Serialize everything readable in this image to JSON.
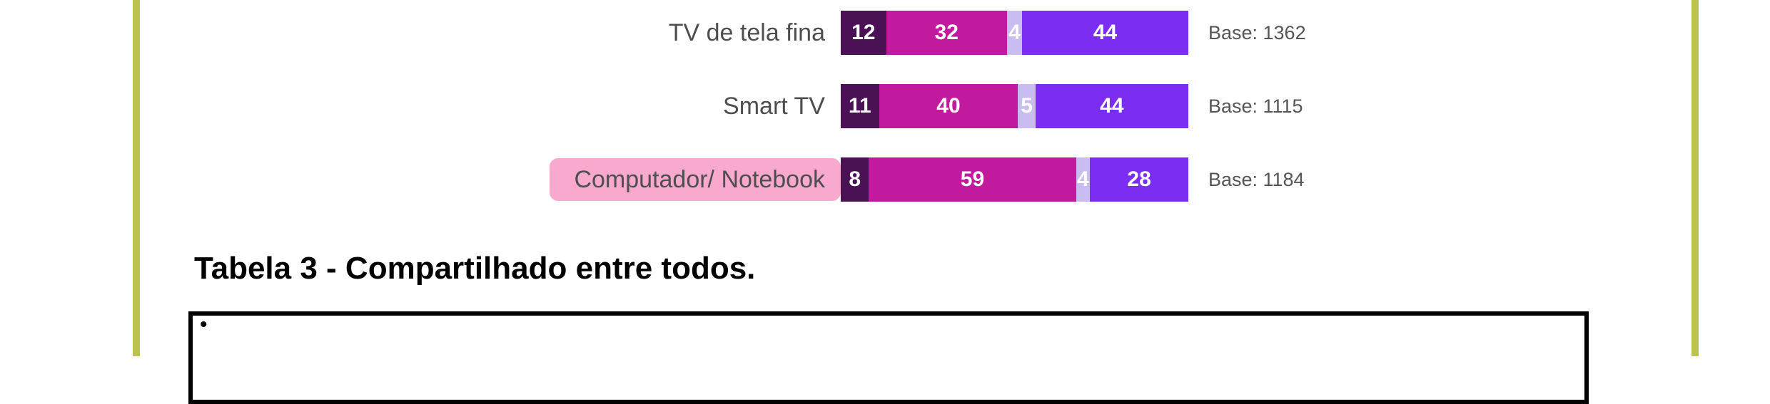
{
  "page": {
    "background": "#ffffff",
    "accent_bar_color": "#bcc24f"
  },
  "chart_data": {
    "type": "bar",
    "orientation": "horizontal",
    "stacked": true,
    "normalized_to_full_width": true,
    "categories": [
      "TV de tela fina",
      "Smart TV",
      "Computador/ Notebook"
    ],
    "series": [
      {
        "name": "segment-1-dark-purple",
        "color": "#4a1155",
        "values": [
          12,
          11,
          8
        ]
      },
      {
        "name": "segment-2-magenta",
        "color": "#c21a9e",
        "values": [
          32,
          40,
          59
        ]
      },
      {
        "name": "segment-3-lavender",
        "color": "#c9bcf0",
        "values": [
          4,
          5,
          4
        ]
      },
      {
        "name": "segment-4-violet",
        "color": "#7c2df2",
        "values": [
          44,
          44,
          28
        ]
      }
    ],
    "base_labels": [
      "Base: 1362",
      "Base: 1115",
      "Base: 1184"
    ],
    "highlighted_category": "Computador/ Notebook",
    "highlight_color": "#f8a9cd",
    "value_label_color": "#ffffff",
    "legend": "none",
    "grid": false
  },
  "caption": {
    "text": "Tabela 3 - Compartilhado entre todos."
  },
  "table_box": {
    "bullet": "•"
  }
}
